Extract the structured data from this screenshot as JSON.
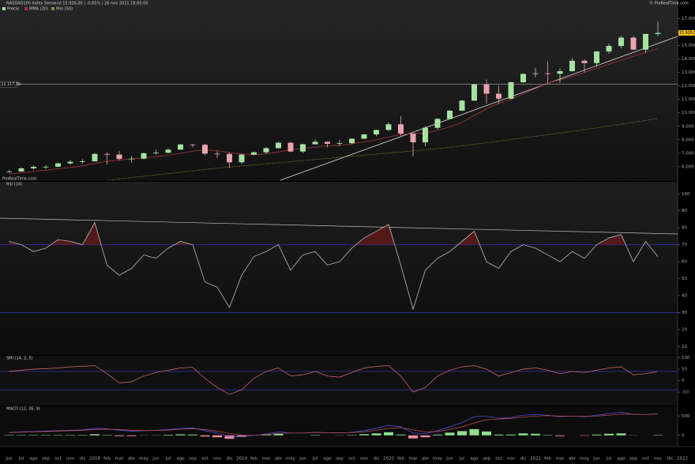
{
  "watermark": "ProRealTime.com",
  "copyright": "© ProRealTime.com",
  "x_labels_extra": [
    "dic",
    "2022"
  ],
  "chart_data": [
    {
      "type": "candlestick",
      "title": "NASDAQ100 Index Semanal 15.926,00 | -0,65% | 26 nov 2021 18:00:00",
      "name": "Precio",
      "up_color": "#a6e3a1",
      "down_color": "#eaa4ae",
      "categories": [
        "jun",
        "jul",
        "ago",
        "sep",
        "oct",
        "nov",
        "dic",
        "2018",
        "feb",
        "mar",
        "abr",
        "may",
        "jun",
        "jul",
        "ago",
        "sep",
        "oct",
        "nov",
        "dic",
        "2019",
        "feb",
        "mar",
        "abr",
        "may",
        "jun",
        "jul",
        "ago",
        "sep",
        "oct",
        "nov",
        "dic",
        "2020",
        "feb",
        "mar",
        "abr",
        "may",
        "jun",
        "jul",
        "ago",
        "sep",
        "oct",
        "nov",
        "dic",
        "2021",
        "feb",
        "mar",
        "abr",
        "may",
        "jun",
        "jul",
        "ago",
        "sep",
        "oct",
        "nov"
      ],
      "open": [
        5600,
        5650,
        5880,
        5990,
        6000,
        6250,
        6370,
        6400,
        6950,
        6900,
        6580,
        6600,
        7000,
        7040,
        7270,
        7650,
        7630,
        6970,
        6950,
        6330,
        6900,
        7070,
        7380,
        7780,
        7130,
        7670,
        7850,
        7700,
        7750,
        8080,
        8400,
        8730,
        9150,
        8460,
        7810,
        8890,
        9550,
        10160,
        10900,
        12110,
        11420,
        11050,
        12270,
        12890,
        12930,
        12900,
        13090,
        13860,
        13690,
        14550,
        14960,
        15580,
        14690,
        15850
      ],
      "high": [
        5780,
        5960,
        6090,
        6130,
        6320,
        6480,
        6560,
        7020,
        7080,
        7180,
        6800,
        7050,
        7280,
        7360,
        7690,
        7700,
        7700,
        7160,
        7060,
        6960,
        7120,
        7450,
        7850,
        7840,
        7700,
        8030,
        7880,
        7980,
        8100,
        8430,
        8750,
        9300,
        9750,
        8500,
        9000,
        9600,
        10220,
        10960,
        12150,
        12470,
        12000,
        12300,
        12900,
        13340,
        13800,
        13300,
        14060,
        13950,
        14570,
        15130,
        15700,
        15700,
        15860,
        16760
      ],
      "low": [
        5560,
        5600,
        5800,
        5850,
        5990,
        6160,
        6230,
        6400,
        6170,
        6460,
        6300,
        6540,
        6900,
        7000,
        7270,
        7440,
        6860,
        6660,
        5900,
        6200,
        6850,
        6960,
        7360,
        7070,
        7000,
        7640,
        7430,
        7530,
        7650,
        8060,
        8260,
        8650,
        8300,
        6770,
        7520,
        8760,
        9500,
        10100,
        10890,
        10670,
        10650,
        11000,
        12220,
        12640,
        12210,
        12210,
        13050,
        13000,
        13420,
        14400,
        14780,
        14650,
        14440,
        15700
      ],
      "close": [
        5650,
        5880,
        5990,
        6000,
        6250,
        6370,
        6400,
        6950,
        6900,
        6580,
        6600,
        7000,
        7040,
        7270,
        7650,
        7630,
        6970,
        6950,
        6330,
        6900,
        7070,
        7380,
        7780,
        7130,
        7670,
        7850,
        7700,
        7750,
        8080,
        8400,
        8730,
        9150,
        8460,
        7810,
        8890,
        9550,
        10160,
        10900,
        12110,
        11420,
        11050,
        12270,
        12890,
        12930,
        12900,
        13090,
        13860,
        13690,
        14550,
        14960,
        15580,
        14690,
        15850,
        15926
      ],
      "series": [
        {
          "name": "MMA (20)",
          "color": "#a8323e",
          "dash": false,
          "values": [
            5450,
            5550,
            5650,
            5750,
            5850,
            5950,
            6070,
            6250,
            6400,
            6500,
            6580,
            6650,
            6750,
            6850,
            7000,
            7150,
            7250,
            7200,
            7050,
            6950,
            6900,
            6950,
            7100,
            7250,
            7350,
            7450,
            7550,
            7600,
            7700,
            7850,
            8000,
            8200,
            8400,
            8450,
            8500,
            8700,
            8950,
            9300,
            9800,
            10300,
            10700,
            11000,
            11400,
            11800,
            12200,
            12450,
            12700,
            13000,
            13300,
            13600,
            13900,
            14200,
            14500,
            14750
          ]
        },
        {
          "name": "Mm (50)",
          "color": "#8a8a2a",
          "dash": true,
          "values": [
            null,
            null,
            null,
            null,
            null,
            null,
            null,
            null,
            5000,
            5100,
            5200,
            5300,
            5400,
            5500,
            5600,
            5700,
            5800,
            5900,
            5980,
            6060,
            6140,
            6220,
            6300,
            6380,
            6460,
            6540,
            6620,
            6700,
            6780,
            6860,
            6940,
            7020,
            7100,
            7180,
            7260,
            7340,
            7440,
            7550,
            7660,
            7780,
            7900,
            8020,
            8140,
            8260,
            8380,
            8500,
            8630,
            8760,
            8890,
            9020,
            9160,
            9300,
            9440,
            9580
          ]
        }
      ],
      "ylim": [
        5000,
        17900
      ],
      "yticks": [
        {
          "value": 6000,
          "label": "6.000"
        },
        {
          "value": 7000,
          "label": "7.000"
        },
        {
          "value": 8000,
          "label": "8.000"
        },
        {
          "value": 9000,
          "label": "9.000"
        },
        {
          "value": 10000,
          "label": "10.000"
        },
        {
          "value": 11000,
          "label": "11.000"
        },
        {
          "value": 12000,
          "label": "12.000"
        },
        {
          "value": 13000,
          "label": "13.000"
        },
        {
          "value": 14000,
          "label": "14.000"
        },
        {
          "value": 15000,
          "label": "15.000"
        },
        {
          "value": 16000,
          "label": "16.000"
        },
        {
          "value": 17000,
          "label": "17.000"
        }
      ],
      "price_tag": {
        "value": 15926,
        "label": "15.926,00"
      },
      "hline": {
        "value": 12117,
        "label": "12.117,00"
      }
    },
    {
      "type": "line",
      "title": "RSI (14)",
      "color": "#d0d0d0",
      "fill_color": "#5a1a1a",
      "values": [
        72,
        70,
        66,
        68,
        73,
        72,
        70,
        83,
        58,
        52,
        56,
        64,
        62,
        68,
        72,
        70,
        48,
        45,
        33,
        52,
        63,
        66,
        70,
        55,
        64,
        66,
        58,
        60,
        68,
        74,
        78,
        82,
        58,
        32,
        55,
        62,
        66,
        72,
        78,
        60,
        56,
        66,
        70,
        68,
        64,
        60,
        66,
        62,
        70,
        74,
        76,
        60,
        72,
        63
      ],
      "ylim": [
        5,
        102
      ],
      "yticks": [
        10,
        20,
        30,
        40,
        50,
        60,
        70,
        80,
        90,
        100
      ],
      "levels": [
        70,
        30
      ]
    },
    {
      "type": "line",
      "title": "SMI (14, 3, 5)",
      "color": "#e07070",
      "values": [
        40,
        45,
        50,
        52,
        55,
        60,
        62,
        65,
        30,
        -10,
        -5,
        20,
        35,
        45,
        55,
        58,
        10,
        -30,
        -60,
        -40,
        10,
        40,
        55,
        20,
        25,
        40,
        20,
        15,
        35,
        55,
        62,
        65,
        20,
        -50,
        -30,
        20,
        45,
        60,
        65,
        50,
        20,
        35,
        50,
        55,
        45,
        30,
        40,
        35,
        45,
        55,
        60,
        25,
        30,
        40
      ],
      "ylim": [
        -105,
        105
      ],
      "yticks": [
        -50,
        0,
        50,
        100
      ],
      "levels": [
        40,
        -40
      ]
    },
    {
      "type": "macd",
      "title": "MACD (12, 26, 9)",
      "pos_color": "#8fe08f",
      "neg_color": "#f08c9c",
      "series": [
        {
          "color": "#5a5aff",
          "values": [
            80,
            90,
            100,
            110,
            120,
            130,
            140,
            180,
            170,
            130,
            110,
            120,
            130,
            150,
            180,
            190,
            120,
            60,
            -40,
            -30,
            0,
            40,
            90,
            60,
            60,
            80,
            70,
            60,
            80,
            120,
            180,
            260,
            220,
            60,
            40,
            120,
            220,
            330,
            480,
            500,
            440,
            460,
            520,
            540,
            520,
            480,
            500,
            480,
            520,
            560,
            600,
            540,
            540,
            560
          ]
        },
        {
          "color": "#d05050",
          "values": [
            70,
            80,
            90,
            100,
            110,
            120,
            130,
            150,
            160,
            150,
            130,
            125,
            125,
            135,
            155,
            170,
            150,
            110,
            50,
            10,
            0,
            20,
            50,
            60,
            60,
            70,
            70,
            65,
            70,
            90,
            130,
            180,
            200,
            140,
            90,
            100,
            150,
            220,
            320,
            400,
            420,
            440,
            470,
            500,
            510,
            500,
            500,
            490,
            500,
            520,
            550,
            545,
            540,
            550
          ]
        }
      ],
      "histogram": [
        10,
        10,
        10,
        10,
        10,
        10,
        10,
        30,
        10,
        -20,
        -20,
        -5,
        5,
        15,
        25,
        20,
        -30,
        -50,
        -90,
        -40,
        0,
        20,
        40,
        0,
        0,
        10,
        0,
        -5,
        10,
        30,
        50,
        80,
        20,
        -80,
        -50,
        20,
        70,
        110,
        160,
        100,
        20,
        20,
        50,
        40,
        10,
        -20,
        0,
        -10,
        20,
        40,
        50,
        -5,
        0,
        10
      ],
      "ylim": [
        -250,
        750
      ],
      "yticks": [
        0,
        500
      ]
    }
  ]
}
